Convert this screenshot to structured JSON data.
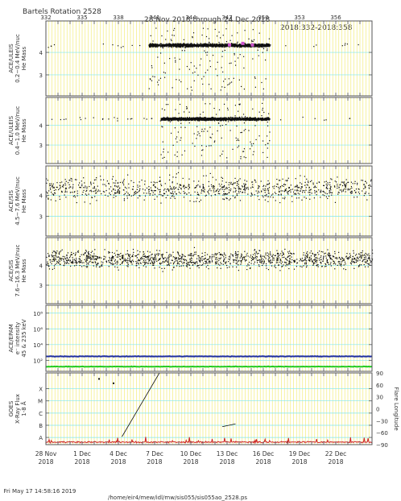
{
  "header": {
    "bartels": "Bartels Rotation 2528",
    "range": "28 Nov 2018 through 24 Dec 2018",
    "doy_range": "2018:332-2018:358"
  },
  "footer": {
    "timestamp": "Fri May 17 14:58:16 2019",
    "path": "/home/eir4/mew/idl/mw/sis055/sis055ao_2528.ps"
  },
  "colors": {
    "grid_yellow": "#f2ec7a",
    "grid_cyan": "#7fe7ee",
    "frame": "#555555",
    "intensity_45": "#1f2fa0",
    "intensity_235": "#22cc22",
    "xray": "#cc2222",
    "mass_highlight": "#cc55cc"
  },
  "chart_data": [
    {
      "type": "scatter",
      "ylabel": [
        "ACE/ULEIS",
        "0.2−0.4 MeV/nuc",
        "He Mass"
      ],
      "yticks": [
        "4",
        "3"
      ],
      "doy_tick_labels": [
        "332",
        "335",
        "338",
        "341",
        "344",
        "347",
        "350",
        "353",
        "356"
      ],
      "x_range": [
        332,
        359
      ],
      "y_range": [
        2.3,
        4.8
      ],
      "description_band": {
        "x_start": 340.5,
        "x_end": 350.5,
        "y_center": 4.0
      },
      "highlight_points": [
        {
          "x": 347.2,
          "y": 4.0
        },
        {
          "x": 348.3,
          "y": 4.05
        },
        {
          "x": 349.1,
          "y": 4.0
        }
      ]
    },
    {
      "type": "scatter",
      "ylabel": [
        "ACE/ULEIS",
        "0.4−1.0 MeV/nuc",
        "He Mass"
      ],
      "yticks": [
        "4",
        "3"
      ],
      "x_range": [
        332,
        359
      ],
      "y_range": [
        2.3,
        4.8
      ],
      "description_band": {
        "x_start": 341.5,
        "x_end": 350.5,
        "y_center": 4.0
      }
    },
    {
      "type": "scatter",
      "ylabel": [
        "ACE/SIS",
        "4.5−7.6 MeV/nuc",
        "He Mass"
      ],
      "yticks": [
        "4",
        "3"
      ],
      "x_range": [
        332,
        359
      ],
      "y_range": [
        2.3,
        4.8
      ]
    },
    {
      "type": "scatter",
      "ylabel": [
        "ACE/SIS",
        "7.6−16.3 MeV/nuc",
        "He Mass"
      ],
      "yticks": [
        "4",
        "3"
      ],
      "x_range": [
        332,
        359
      ],
      "y_range": [
        2.3,
        4.8
      ]
    },
    {
      "type": "line",
      "ylabel": [
        "ACE/EPAM",
        "e⁻ intensity",
        "45 & 235 keV"
      ],
      "yticks": [
        "10⁸",
        "10⁶",
        "10⁴",
        "10²"
      ],
      "y_log_range": [
        0.6,
        9
      ],
      "x_range": [
        332,
        359
      ],
      "series": [
        {
          "color_key": "intensity_45",
          "log_value": 2.5
        },
        {
          "color_key": "intensity_235",
          "log_value": 1.2
        }
      ]
    },
    {
      "type": "line",
      "ylabel": [
        "GOES",
        "X-Ray Flux",
        "1-8 Å"
      ],
      "yticks": [
        "X",
        "M",
        "C",
        "B",
        "A"
      ],
      "y2label": "Flare Longitude",
      "y2ticks": [
        "90",
        "60",
        "30",
        "0",
        "−30",
        "−60",
        "−90"
      ],
      "x_range": [
        332,
        359
      ],
      "flare_segments": [
        {
          "x1": 338.3,
          "lon1": -70,
          "x2": 341.4,
          "lon2": 90
        },
        {
          "x1": 346.6,
          "lon1": -45,
          "x2": 347.7,
          "lon2": -38
        }
      ],
      "flare_points": [
        {
          "x": 336.4,
          "lon": 75
        },
        {
          "x": 337.6,
          "lon": 64
        }
      ]
    }
  ],
  "x_axis": {
    "date_ticks": [
      {
        "day": "28 Nov",
        "year": "2018"
      },
      {
        "day": "1 Dec",
        "year": "2018"
      },
      {
        "day": "4 Dec",
        "year": "2018"
      },
      {
        "day": "7 Dec",
        "year": "2018"
      },
      {
        "day": "10 Dec",
        "year": "2018"
      },
      {
        "day": "13 Dec",
        "year": "2018"
      },
      {
        "day": "16 Dec",
        "year": "2018"
      },
      {
        "day": "19 Dec",
        "year": "2018"
      },
      {
        "day": "22 Dec",
        "year": "2018"
      }
    ]
  }
}
